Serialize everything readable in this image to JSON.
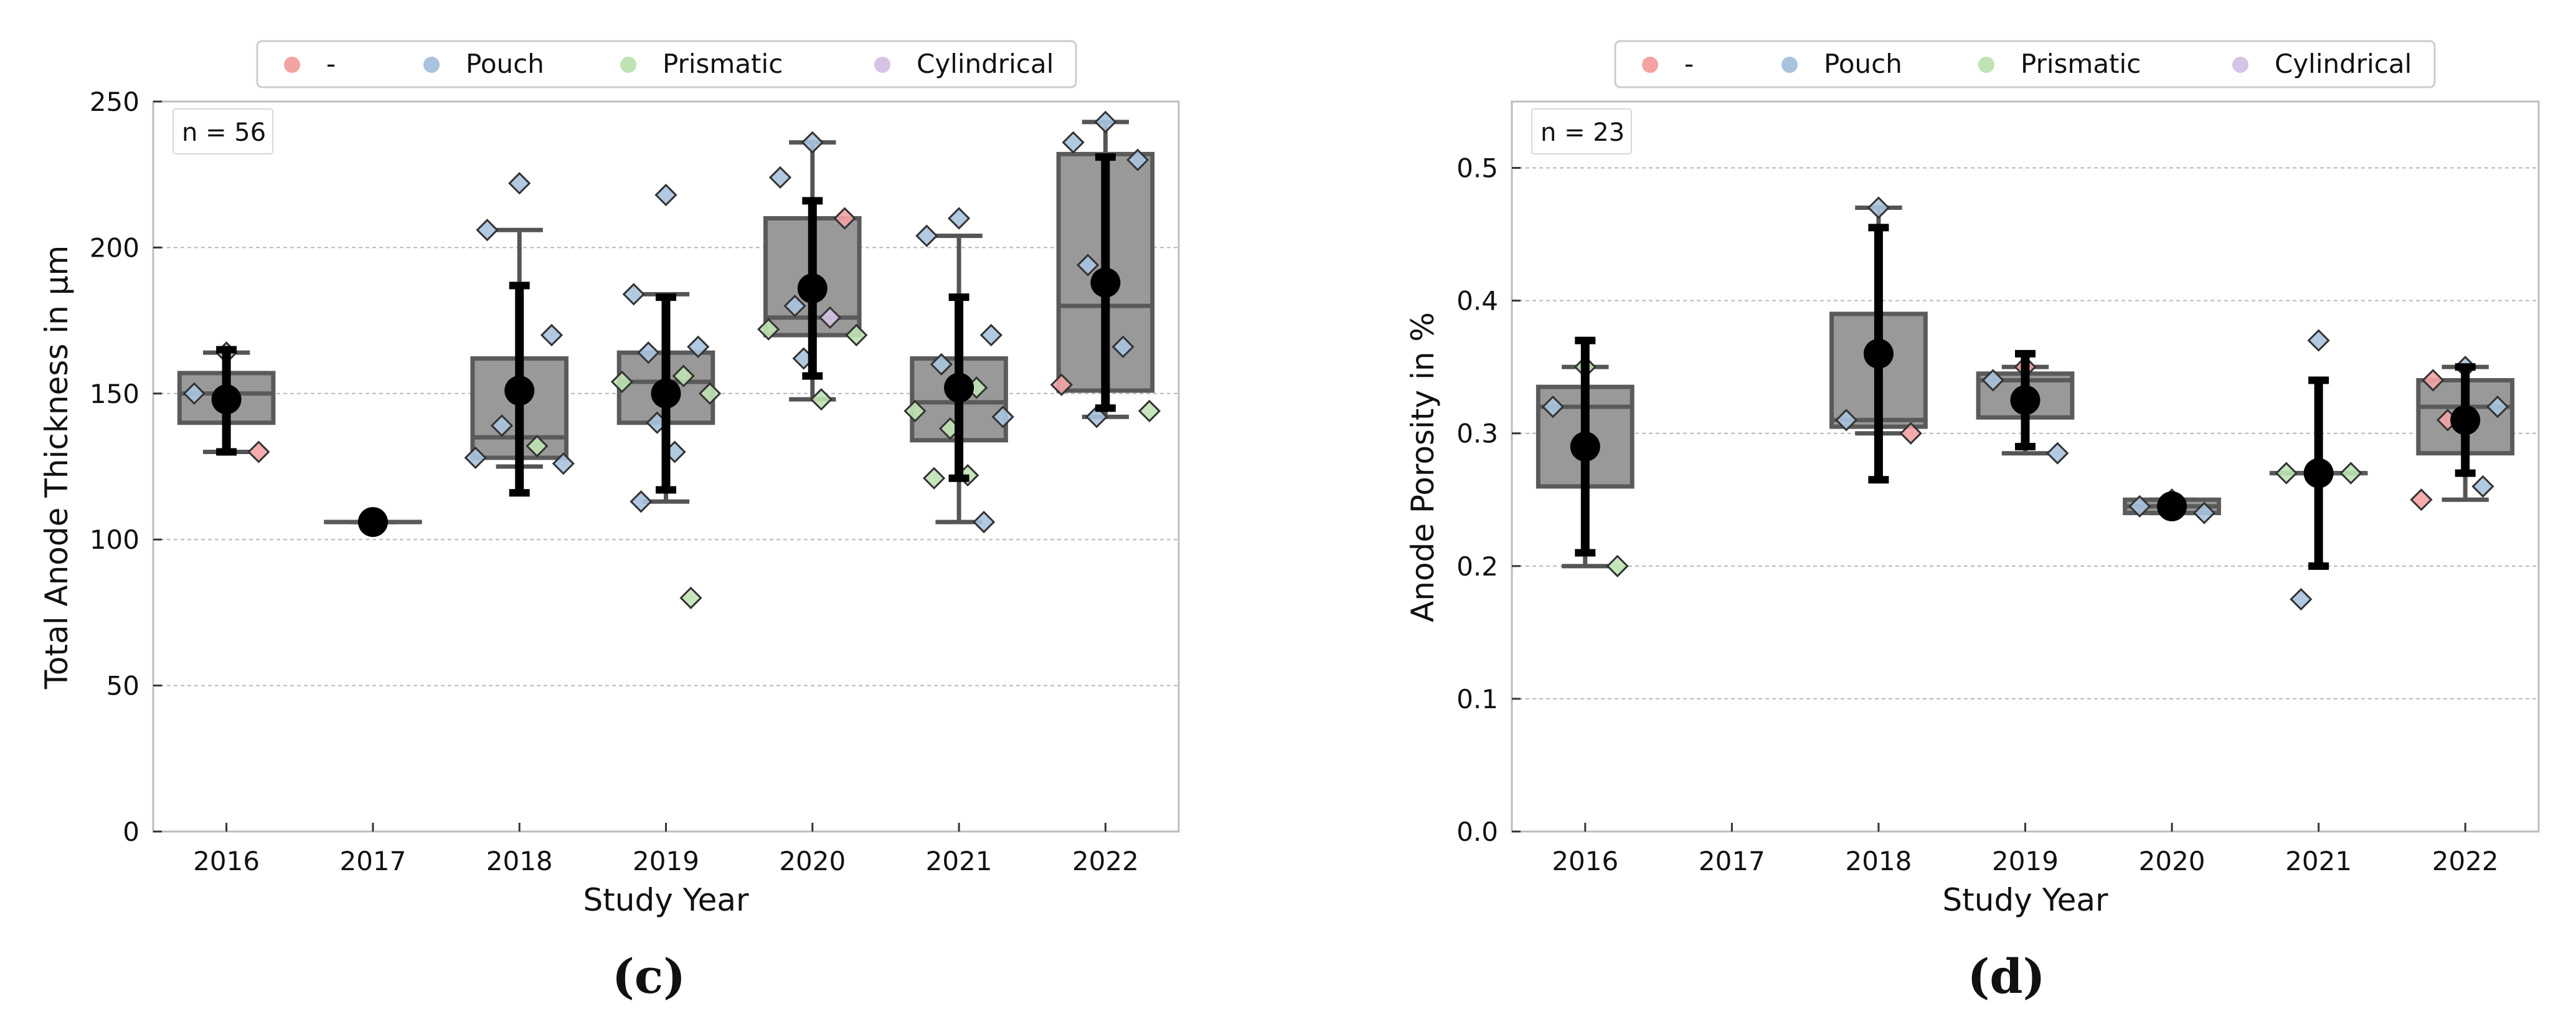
{
  "chart_data": [
    {
      "panel": "c",
      "type": "box",
      "caption": "(c)",
      "title": "",
      "xlabel": "Study Year",
      "ylabel": "Total Anode Thickness in µm",
      "categories": [
        "2016",
        "2017",
        "2018",
        "2019",
        "2020",
        "2021",
        "2022"
      ],
      "ylim": [
        0,
        250
      ],
      "yticks": [
        0,
        50,
        100,
        150,
        200,
        250
      ],
      "ytick_labels": [
        "0",
        "50",
        "100",
        "150",
        "200",
        "250"
      ],
      "grid": true,
      "legend_placement": "top-center",
      "legend": [
        {
          "label": "-",
          "color": "#f4a3a3"
        },
        {
          "label": "Pouch",
          "color": "#a9c3de"
        },
        {
          "label": "Prismatic",
          "color": "#bfe3b4"
        },
        {
          "label": "Cylindrical",
          "color": "#d6c3e6"
        }
      ],
      "n_label": "n = 56",
      "boxes": [
        {
          "year": "2016",
          "q1": 140,
          "median": 150,
          "q3": 157,
          "whisker_low": 130,
          "whisker_high": 164,
          "mean": 148,
          "sd_low": 130,
          "sd_high": 165
        },
        {
          "year": "2017",
          "q1": 106,
          "median": 106,
          "q3": 106,
          "whisker_low": 106,
          "whisker_high": 106,
          "mean": 106,
          "sd_low": 106,
          "sd_high": 106
        },
        {
          "year": "2018",
          "q1": 128,
          "median": 135,
          "q3": 162,
          "whisker_low": 125,
          "whisker_high": 206,
          "mean": 151,
          "sd_low": 116,
          "sd_high": 187
        },
        {
          "year": "2019",
          "q1": 140,
          "median": 154,
          "q3": 164,
          "whisker_low": 113,
          "whisker_high": 184,
          "mean": 150,
          "sd_low": 117,
          "sd_high": 183
        },
        {
          "year": "2020",
          "q1": 170,
          "median": 176,
          "q3": 210,
          "whisker_low": 148,
          "whisker_high": 236,
          "mean": 186,
          "sd_low": 156,
          "sd_high": 216
        },
        {
          "year": "2021",
          "q1": 134,
          "median": 147,
          "q3": 162,
          "whisker_low": 106,
          "whisker_high": 204,
          "mean": 152,
          "sd_low": 121,
          "sd_high": 183
        },
        {
          "year": "2022",
          "q1": 151,
          "median": 180,
          "q3": 232,
          "whisker_low": 142,
          "whisker_high": 243,
          "mean": 188,
          "sd_low": 145,
          "sd_high": 231
        }
      ],
      "points": [
        {
          "year": "2016",
          "value": 164,
          "type": "Pouch"
        },
        {
          "year": "2016",
          "value": 150,
          "type": "Pouch"
        },
        {
          "year": "2016",
          "value": 130,
          "type": "-"
        },
        {
          "year": "2017",
          "value": 106,
          "type": "Pouch"
        },
        {
          "year": "2018",
          "value": 222,
          "type": "Pouch"
        },
        {
          "year": "2018",
          "value": 206,
          "type": "Pouch"
        },
        {
          "year": "2018",
          "value": 170,
          "type": "Pouch"
        },
        {
          "year": "2018",
          "value": 139,
          "type": "Pouch"
        },
        {
          "year": "2018",
          "value": 132,
          "type": "Prismatic"
        },
        {
          "year": "2018",
          "value": 128,
          "type": "Pouch"
        },
        {
          "year": "2018",
          "value": 126,
          "type": "Pouch"
        },
        {
          "year": "2019",
          "value": 218,
          "type": "Pouch"
        },
        {
          "year": "2019",
          "value": 184,
          "type": "Pouch"
        },
        {
          "year": "2019",
          "value": 166,
          "type": "Pouch"
        },
        {
          "year": "2019",
          "value": 164,
          "type": "Pouch"
        },
        {
          "year": "2019",
          "value": 156,
          "type": "Prismatic"
        },
        {
          "year": "2019",
          "value": 154,
          "type": "Prismatic"
        },
        {
          "year": "2019",
          "value": 150,
          "type": "Prismatic"
        },
        {
          "year": "2019",
          "value": 140,
          "type": "Pouch"
        },
        {
          "year": "2019",
          "value": 130,
          "type": "Pouch"
        },
        {
          "year": "2019",
          "value": 113,
          "type": "Pouch"
        },
        {
          "year": "2019",
          "value": 80,
          "type": "Prismatic"
        },
        {
          "year": "2020",
          "value": 236,
          "type": "Pouch"
        },
        {
          "year": "2020",
          "value": 224,
          "type": "Pouch"
        },
        {
          "year": "2020",
          "value": 210,
          "type": "-"
        },
        {
          "year": "2020",
          "value": 180,
          "type": "Pouch"
        },
        {
          "year": "2020",
          "value": 176,
          "type": "Cylindrical"
        },
        {
          "year": "2020",
          "value": 172,
          "type": "Prismatic"
        },
        {
          "year": "2020",
          "value": 170,
          "type": "Prismatic"
        },
        {
          "year": "2020",
          "value": 162,
          "type": "Pouch"
        },
        {
          "year": "2020",
          "value": 148,
          "type": "Prismatic"
        },
        {
          "year": "2021",
          "value": 210,
          "type": "Pouch"
        },
        {
          "year": "2021",
          "value": 204,
          "type": "Pouch"
        },
        {
          "year": "2021",
          "value": 170,
          "type": "Pouch"
        },
        {
          "year": "2021",
          "value": 160,
          "type": "Pouch"
        },
        {
          "year": "2021",
          "value": 152,
          "type": "Prismatic"
        },
        {
          "year": "2021",
          "value": 144,
          "type": "Prismatic"
        },
        {
          "year": "2021",
          "value": 142,
          "type": "Pouch"
        },
        {
          "year": "2021",
          "value": 138,
          "type": "Prismatic"
        },
        {
          "year": "2021",
          "value": 122,
          "type": "Prismatic"
        },
        {
          "year": "2021",
          "value": 121,
          "type": "Prismatic"
        },
        {
          "year": "2021",
          "value": 106,
          "type": "Pouch"
        },
        {
          "year": "2022",
          "value": 243,
          "type": "Pouch"
        },
        {
          "year": "2022",
          "value": 236,
          "type": "Pouch"
        },
        {
          "year": "2022",
          "value": 230,
          "type": "Pouch"
        },
        {
          "year": "2022",
          "value": 194,
          "type": "Pouch"
        },
        {
          "year": "2022",
          "value": 166,
          "type": "Pouch"
        },
        {
          "year": "2022",
          "value": 153,
          "type": "-"
        },
        {
          "year": "2022",
          "value": 144,
          "type": "Prismatic"
        },
        {
          "year": "2022",
          "value": 142,
          "type": "Pouch"
        }
      ]
    },
    {
      "panel": "d",
      "type": "box",
      "caption": "(d)",
      "title": "",
      "xlabel": "Study Year",
      "ylabel": "Anode Porosity in %",
      "categories": [
        "2016",
        "2017",
        "2018",
        "2019",
        "2020",
        "2021",
        "2022"
      ],
      "ylim": [
        0,
        0.55
      ],
      "yticks": [
        0,
        0.1,
        0.2,
        0.3,
        0.4,
        0.5
      ],
      "ytick_labels": [
        "0.0",
        "0.1",
        "0.2",
        "0.3",
        "0.4",
        "0.5"
      ],
      "grid": true,
      "legend_placement": "top-center",
      "legend": [
        {
          "label": "-",
          "color": "#f4a3a3"
        },
        {
          "label": "Pouch",
          "color": "#a9c3de"
        },
        {
          "label": "Prismatic",
          "color": "#bfe3b4"
        },
        {
          "label": "Cylindrical",
          "color": "#d6c3e6"
        }
      ],
      "n_label": "n = 23",
      "boxes": [
        {
          "year": "2016",
          "q1": 0.26,
          "median": 0.32,
          "q3": 0.335,
          "whisker_low": 0.2,
          "whisker_high": 0.35,
          "mean": 0.29,
          "sd_low": 0.21,
          "sd_high": 0.37
        },
        {
          "year": "2018",
          "q1": 0.305,
          "median": 0.31,
          "q3": 0.39,
          "whisker_low": 0.3,
          "whisker_high": 0.47,
          "mean": 0.36,
          "sd_low": 0.265,
          "sd_high": 0.455
        },
        {
          "year": "2019",
          "q1": 0.312,
          "median": 0.34,
          "q3": 0.345,
          "whisker_low": 0.285,
          "whisker_high": 0.35,
          "mean": 0.325,
          "sd_low": 0.29,
          "sd_high": 0.36
        },
        {
          "year": "2020",
          "q1": 0.24,
          "median": 0.245,
          "q3": 0.25,
          "whisker_low": 0.24,
          "whisker_high": 0.25,
          "mean": 0.245,
          "sd_low": 0.24,
          "sd_high": 0.25
        },
        {
          "year": "2021",
          "q1": 0.27,
          "median": 0.27,
          "q3": 0.27,
          "whisker_low": 0.27,
          "whisker_high": 0.27,
          "mean": 0.27,
          "sd_low": 0.2,
          "sd_high": 0.34
        },
        {
          "year": "2022",
          "q1": 0.285,
          "median": 0.32,
          "q3": 0.34,
          "whisker_low": 0.25,
          "whisker_high": 0.35,
          "mean": 0.31,
          "sd_low": 0.27,
          "sd_high": 0.35
        }
      ],
      "points": [
        {
          "year": "2016",
          "value": 0.35,
          "type": "Prismatic"
        },
        {
          "year": "2016",
          "value": 0.32,
          "type": "Pouch"
        },
        {
          "year": "2016",
          "value": 0.2,
          "type": "Prismatic"
        },
        {
          "year": "2018",
          "value": 0.47,
          "type": "Pouch"
        },
        {
          "year": "2018",
          "value": 0.31,
          "type": "Pouch"
        },
        {
          "year": "2018",
          "value": 0.3,
          "type": "-"
        },
        {
          "year": "2019",
          "value": 0.35,
          "type": "-"
        },
        {
          "year": "2019",
          "value": 0.34,
          "type": "Pouch"
        },
        {
          "year": "2019",
          "value": 0.285,
          "type": "Pouch"
        },
        {
          "year": "2020",
          "value": 0.25,
          "type": "-"
        },
        {
          "year": "2020",
          "value": 0.245,
          "type": "Pouch"
        },
        {
          "year": "2020",
          "value": 0.24,
          "type": "Pouch"
        },
        {
          "year": "2021",
          "value": 0.37,
          "type": "Pouch"
        },
        {
          "year": "2021",
          "value": 0.27,
          "type": "Prismatic"
        },
        {
          "year": "2021",
          "value": 0.27,
          "type": "Prismatic"
        },
        {
          "year": "2021",
          "value": 0.175,
          "type": "Pouch"
        },
        {
          "year": "2022",
          "value": 0.35,
          "type": "Pouch"
        },
        {
          "year": "2022",
          "value": 0.34,
          "type": "-"
        },
        {
          "year": "2022",
          "value": 0.32,
          "type": "Pouch"
        },
        {
          "year": "2022",
          "value": 0.31,
          "type": "-"
        },
        {
          "year": "2022",
          "value": 0.26,
          "type": "Pouch"
        },
        {
          "year": "2022",
          "value": 0.25,
          "type": "-"
        }
      ]
    }
  ]
}
